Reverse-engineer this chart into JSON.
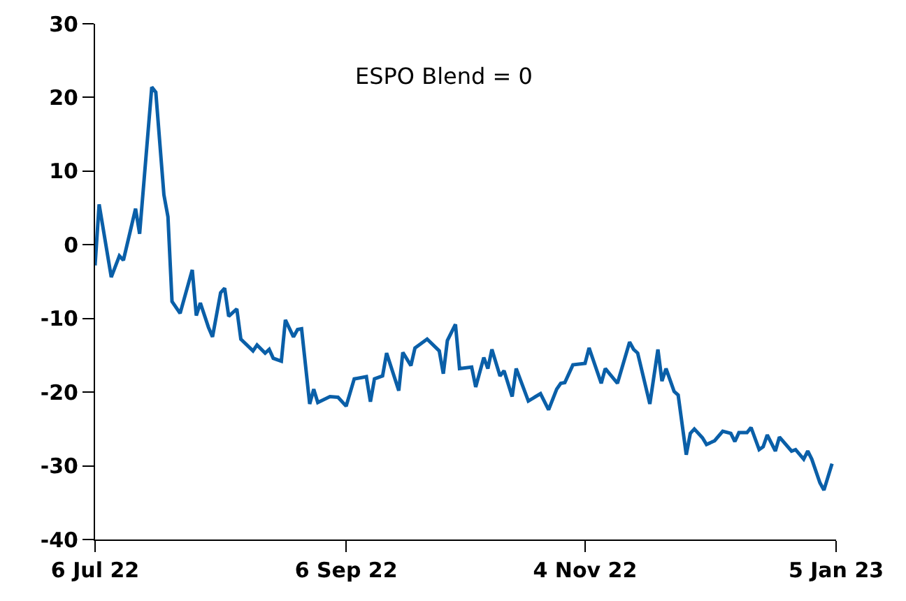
{
  "chart_data": {
    "type": "line",
    "annotations": [
      "ESPO Blend = 0"
    ],
    "x": [
      "2022-07-06",
      "2022-07-07",
      "2022-07-10",
      "2022-07-12",
      "2022-07-13",
      "2022-07-16",
      "2022-07-17",
      "2022-07-20",
      "2022-07-21",
      "2022-07-23",
      "2022-07-24",
      "2022-07-25",
      "2022-07-27",
      "2022-07-30",
      "2022-07-31",
      "2022-08-01",
      "2022-08-03",
      "2022-08-04",
      "2022-08-06",
      "2022-08-07",
      "2022-08-08",
      "2022-08-10",
      "2022-08-11",
      "2022-08-14",
      "2022-08-15",
      "2022-08-17",
      "2022-08-18",
      "2022-08-19",
      "2022-08-21",
      "2022-08-22",
      "2022-08-24",
      "2022-08-25",
      "2022-08-26",
      "2022-08-28",
      "2022-08-29",
      "2022-08-30",
      "2022-09-02",
      "2022-09-04",
      "2022-09-06",
      "2022-09-08",
      "2022-09-11",
      "2022-09-12",
      "2022-09-13",
      "2022-09-15",
      "2022-09-16",
      "2022-09-19",
      "2022-09-20",
      "2022-09-22",
      "2022-09-23",
      "2022-09-24",
      "2022-09-26",
      "2022-09-29",
      "2022-09-30",
      "2022-10-01",
      "2022-10-03",
      "2022-10-04",
      "2022-10-07",
      "2022-10-08",
      "2022-10-10",
      "2022-10-11",
      "2022-10-12",
      "2022-10-14",
      "2022-10-15",
      "2022-10-17",
      "2022-10-18",
      "2022-10-21",
      "2022-10-24",
      "2022-10-26",
      "2022-10-28",
      "2022-10-29",
      "2022-10-30",
      "2022-11-01",
      "2022-11-04",
      "2022-11-05",
      "2022-11-08",
      "2022-11-09",
      "2022-11-12",
      "2022-11-15",
      "2022-11-16",
      "2022-11-17",
      "2022-11-20",
      "2022-11-22",
      "2022-11-23",
      "2022-11-24",
      "2022-11-26",
      "2022-11-27",
      "2022-11-29",
      "2022-11-30",
      "2022-12-01",
      "2022-12-03",
      "2022-12-04",
      "2022-12-06",
      "2022-12-08",
      "2022-12-10",
      "2022-12-11",
      "2022-12-12",
      "2022-12-14",
      "2022-12-15",
      "2022-12-17",
      "2022-12-18",
      "2022-12-19",
      "2022-12-21",
      "2022-12-22",
      "2022-12-25",
      "2022-12-26",
      "2022-12-28",
      "2022-12-29",
      "2022-12-30",
      "2023-01-01",
      "2023-01-02",
      "2023-01-04"
    ],
    "series": [
      {
        "color": "#0a5fa8",
        "values": [
          -2.8,
          5.5,
          -4.4,
          -1.5,
          -2.1,
          4.9,
          1.5,
          21.4,
          20.7,
          6.8,
          3.8,
          -7.7,
          -9.3,
          -3.4,
          -9.6,
          -7.9,
          -11.2,
          -12.5,
          -6.5,
          -5.9,
          -9.7,
          -8.7,
          -12.8,
          -14.4,
          -13.6,
          -14.7,
          -14.2,
          -15.4,
          -15.8,
          -10.2,
          -12.5,
          -11.5,
          -11.4,
          -21.6,
          -19.6,
          -21.4,
          -20.6,
          -20.7,
          -21.9,
          -18.2,
          -17.9,
          -21.3,
          -18.2,
          -17.8,
          -14.7,
          -19.8,
          -14.6,
          -16.4,
          -14.0,
          -13.6,
          -12.8,
          -14.4,
          -17.5,
          -13.0,
          -10.8,
          -16.8,
          -16.6,
          -19.3,
          -15.3,
          -16.8,
          -14.2,
          -17.8,
          -17.1,
          -20.6,
          -16.8,
          -21.2,
          -20.2,
          -22.4,
          -19.6,
          -18.8,
          -18.7,
          -16.3,
          -16.1,
          -14.0,
          -18.8,
          -16.8,
          -18.8,
          -13.2,
          -14.2,
          -14.7,
          -21.6,
          -14.2,
          -18.5,
          -16.8,
          -19.9,
          -20.4,
          -28.5,
          -25.6,
          -25.0,
          -26.2,
          -27.1,
          -26.6,
          -25.3,
          -25.6,
          -26.7,
          -25.5,
          -25.5,
          -24.8,
          -27.8,
          -27.4,
          -25.8,
          -28.0,
          -26.1,
          -28.0,
          -27.8,
          -29.1,
          -28.0,
          -29.1,
          -32.3,
          -33.3,
          -29.7
        ]
      }
    ],
    "xlim": [
      "2022-07-06",
      "2023-01-05"
    ],
    "xticks": [
      {
        "value": "2022-07-06",
        "label": "6 Jul 22"
      },
      {
        "value": "2022-09-06",
        "label": "6 Sep 22"
      },
      {
        "value": "2022-11-04",
        "label": "4 Nov 22"
      },
      {
        "value": "2023-01-05",
        "label": "5 Jan 23"
      }
    ],
    "ylim": [
      -40,
      30
    ],
    "yticks": [
      -40,
      -30,
      -20,
      -10,
      0,
      10,
      20,
      30
    ],
    "grid": false,
    "marker": "none",
    "line_style": "solid"
  }
}
